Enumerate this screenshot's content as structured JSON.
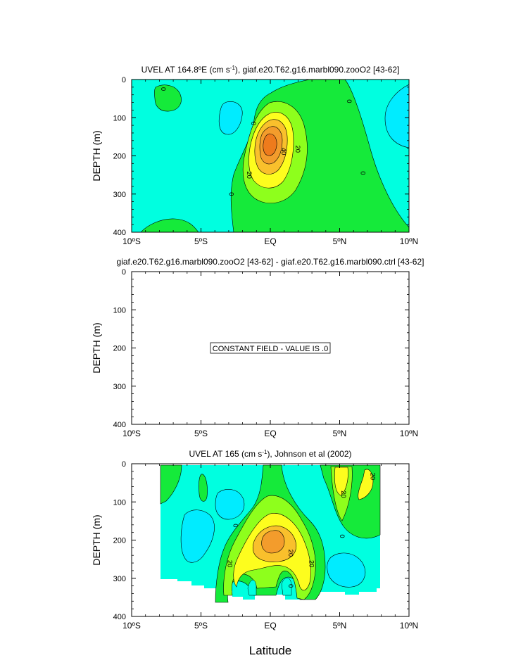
{
  "figure": {
    "xlabel": "Latitude",
    "colors": {
      "cyan": "#00ffe0",
      "aqua": "#00ecff",
      "green": "#15ea3a",
      "lime": "#8eff1c",
      "yellow": "#fdfd1e",
      "orange": "#f9c02c",
      "deep_orange": "#f39c2c",
      "empty": "#ffffff"
    }
  },
  "chart_data": [
    {
      "type": "contour",
      "title_html": "UVEL AT 164.8ºE (cm s⁻¹), giaf.e20.T62.g16.marbl090.zooO2 [43-62]",
      "ylabel": "DEPTH (m)",
      "x_ticks": [
        "10ºS",
        "5ºS",
        "EQ",
        "5ºN",
        "10ºN"
      ],
      "x_values": [
        -10,
        -5,
        0,
        5,
        10
      ],
      "xlim": [
        -10,
        10
      ],
      "y_ticks": [
        "0",
        "100",
        "200",
        "300",
        "400"
      ],
      "y_values": [
        0,
        100,
        200,
        300,
        400
      ],
      "ylim": [
        0,
        400
      ],
      "y_inverted": true,
      "contour_interval": 10,
      "contour_labels": [
        {
          "text": "0",
          "lat": -7.7,
          "depth": 25
        },
        {
          "text": "0",
          "lat": -1.2,
          "depth": 115
        },
        {
          "text": "0",
          "lat": 5.7,
          "depth": 57
        },
        {
          "text": "0",
          "lat": 6.7,
          "depth": 245
        },
        {
          "text": "0",
          "lat": -2.8,
          "depth": 300
        },
        {
          "text": "20",
          "lat": -1.5,
          "depth": 250
        },
        {
          "text": "20",
          "lat": 2.0,
          "depth": 182
        },
        {
          "text": "40",
          "lat": 1.0,
          "depth": 188
        }
      ],
      "max_value": 50,
      "max_location": {
        "lat": 0,
        "depth": 180
      }
    },
    {
      "type": "contour",
      "title": "giaf.e20.T62.g16.marbl090.zooO2 [43-62] - giaf.e20.T62.g16.marbl090.ctrl [43-62]",
      "ylabel": "DEPTH (m)",
      "x_ticks": [
        "10ºS",
        "5ºS",
        "EQ",
        "5ºN",
        "10ºN"
      ],
      "x_values": [
        -10,
        -5,
        0,
        5,
        10
      ],
      "xlim": [
        -10,
        10
      ],
      "y_ticks": [
        "0",
        "100",
        "200",
        "300",
        "400"
      ],
      "y_values": [
        0,
        100,
        200,
        300,
        400
      ],
      "ylim": [
        0,
        400
      ],
      "y_inverted": true,
      "annotation": "CONSTANT FIELD - VALUE IS .0",
      "constant_value": 0
    },
    {
      "type": "contour",
      "title": "UVEL AT 165 (cm s⁻¹), Johnson et al (2002)",
      "ylabel": "DEPTH (m)",
      "x_ticks": [
        "10ºS",
        "5ºS",
        "EQ",
        "5ºN",
        "10ºN"
      ],
      "x_values": [
        -10,
        -5,
        0,
        5,
        10
      ],
      "xlim": [
        -10,
        10
      ],
      "y_ticks": [
        "0",
        "100",
        "200",
        "300",
        "400"
      ],
      "y_values": [
        0,
        100,
        200,
        300,
        400
      ],
      "ylim": [
        0,
        400
      ],
      "y_inverted": true,
      "data_lat_range": [
        -8,
        8
      ],
      "data_depth_range": [
        5,
        360
      ],
      "contour_interval": 10,
      "contour_labels": [
        {
          "text": "0",
          "lat": -2.5,
          "depth": 162
        },
        {
          "text": "0",
          "lat": 5.2,
          "depth": 190
        },
        {
          "text": "0",
          "lat": 1.5,
          "depth": 320
        },
        {
          "text": "20",
          "lat": -2.9,
          "depth": 262
        },
        {
          "text": "20",
          "lat": 1.5,
          "depth": 234
        },
        {
          "text": "20",
          "lat": 3.0,
          "depth": 262
        },
        {
          "text": "20",
          "lat": 5.3,
          "depth": 80
        },
        {
          "text": "20",
          "lat": 7.4,
          "depth": 33
        }
      ],
      "max_value": 50,
      "max_location": {
        "lat": 0,
        "depth": 185
      }
    }
  ]
}
